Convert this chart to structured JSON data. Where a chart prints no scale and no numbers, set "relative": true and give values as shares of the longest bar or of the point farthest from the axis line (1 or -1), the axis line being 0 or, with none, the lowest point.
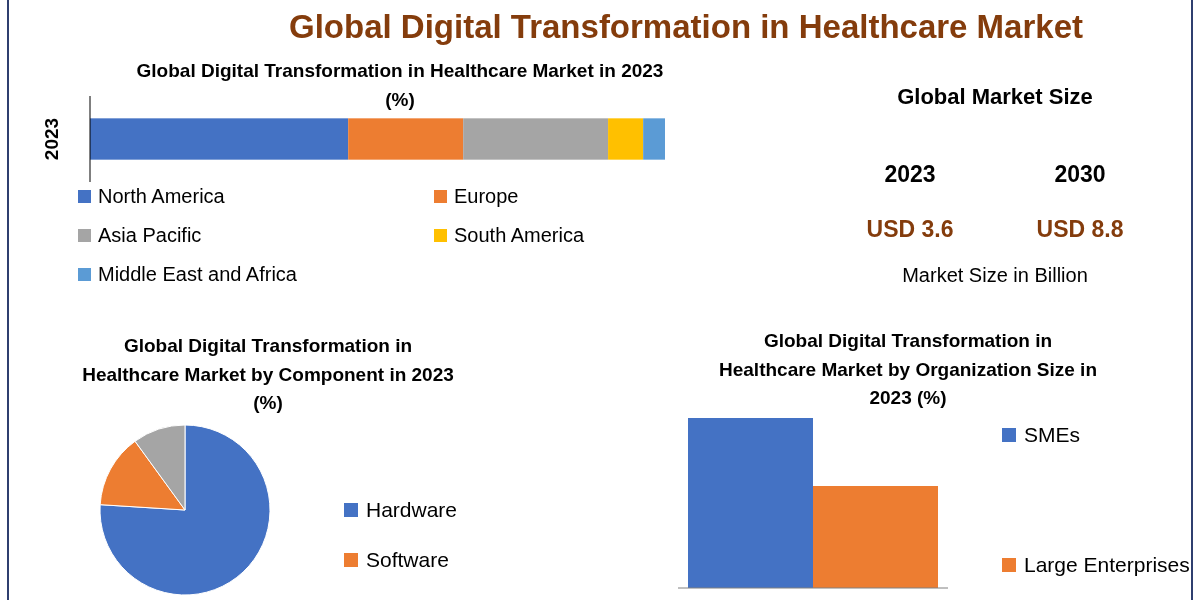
{
  "chart_data": [
    {
      "type": "bar",
      "title": "Global Digital Transformation in Healthcare Market",
      "subtitle": "Global Digital Transformation in Healthcare Market in 2023 (%)",
      "orientation": "horizontal",
      "stacked": true,
      "relative": true,
      "legend": "bottom",
      "categories": [
        "2023"
      ],
      "series": [
        {
          "name": "North America",
          "color": "#4472c4",
          "values": [
            0.449
          ]
        },
        {
          "name": "Europe",
          "color": "#ed7d31",
          "values": [
            0.2
          ]
        },
        {
          "name": "Asia Pacific",
          "color": "#a5a5a5",
          "values": [
            0.252
          ]
        },
        {
          "name": "South America",
          "color": "#ffc000",
          "values": [
            0.061
          ]
        },
        {
          "name": "Middle East and Africa",
          "color": "#5b9bd5",
          "values": [
            0.038
          ]
        }
      ]
    },
    {
      "type": "other",
      "title": "Global Market Size",
      "annotations": [
        "2023",
        "2030",
        "USD 3.6",
        "USD 8.8",
        "Market Size in Billion"
      ]
    },
    {
      "type": "pie",
      "title": "Global Digital Transformation in Healthcare Market by Component in 2023 (%)",
      "legend": "right",
      "categories": [
        "Hardware",
        "Software",
        null
      ],
      "values": [
        76,
        14,
        10
      ],
      "colors": [
        "#4472c4",
        "#ed7d31",
        "#a5a5a5"
      ]
    },
    {
      "type": "bar",
      "title": "Global Digital Transformation in Healthcare Market by Organization Size in 2023 (%)",
      "relative": true,
      "legend": "right",
      "categories": [
        null
      ],
      "series": [
        {
          "name": "SMEs",
          "color": "#4472c4",
          "values": [
            1
          ]
        },
        {
          "name": "Large Enterprises",
          "color": "#ed7d31",
          "values": [
            0.6
          ]
        }
      ]
    }
  ]
}
